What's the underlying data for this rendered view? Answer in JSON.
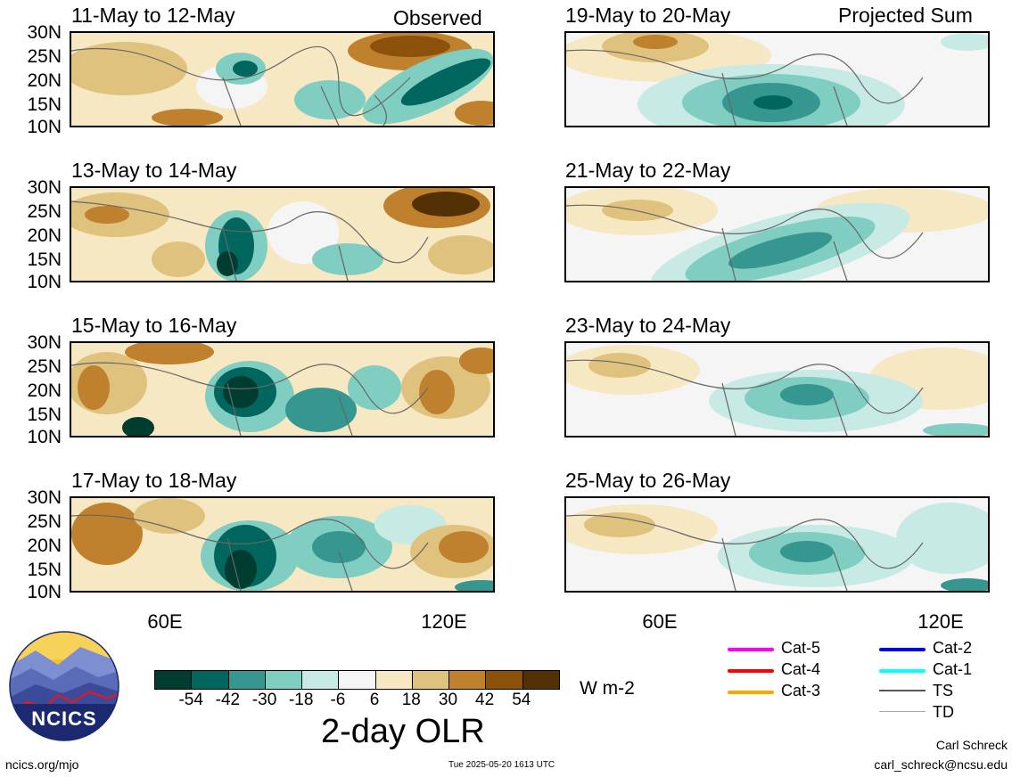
{
  "panels": [
    {
      "title": "11-May to 12-May",
      "corner": "Observed"
    },
    {
      "title": "13-May to 14-May",
      "corner": ""
    },
    {
      "title": "15-May to 16-May",
      "corner": ""
    },
    {
      "title": "17-May to 18-May",
      "corner": ""
    },
    {
      "title": "19-May to 20-May",
      "corner": "Projected Sum"
    },
    {
      "title": "21-May to 22-May",
      "corner": ""
    },
    {
      "title": "23-May to 24-May",
      "corner": ""
    },
    {
      "title": "25-May to 26-May",
      "corner": ""
    }
  ],
  "lat_labels": [
    "30N",
    "25N",
    "20N",
    "15N",
    "10N"
  ],
  "lon_labels": [
    "60E",
    "120E"
  ],
  "colorbar": {
    "colors": [
      "#003c30",
      "#01665e",
      "#35978f",
      "#80cdc1",
      "#c7eae5",
      "#f5f5f5",
      "#f6e8c3",
      "#dfc27d",
      "#bf812d",
      "#8c510a",
      "#543005"
    ],
    "labels": [
      "-54",
      "-42",
      "-30",
      "-18",
      "-6",
      "6",
      "18",
      "30",
      "42",
      "54"
    ],
    "units": "W m-2",
    "title": "2-day OLR"
  },
  "legend": [
    {
      "label": "Cat-5",
      "color": "#ff00ff"
    },
    {
      "label": "Cat-4",
      "color": "#ff0000"
    },
    {
      "label": "Cat-3",
      "color": "#ffa500"
    },
    {
      "label": "Cat-2",
      "color": "#0000ff"
    },
    {
      "label": "Cat-1",
      "color": "#00ffff"
    },
    {
      "label": "TS",
      "color": "#555555"
    },
    {
      "label": "TD",
      "color": "#aaaaaa"
    }
  ],
  "logo": {
    "text": "NCICS"
  },
  "footer": {
    "site": "ncics.org/mjo",
    "timestamp": "Tue 2025-05-20 1613 UTC",
    "author": "Carl Schreck",
    "email": "carl_schreck@ncsu.edu"
  }
}
